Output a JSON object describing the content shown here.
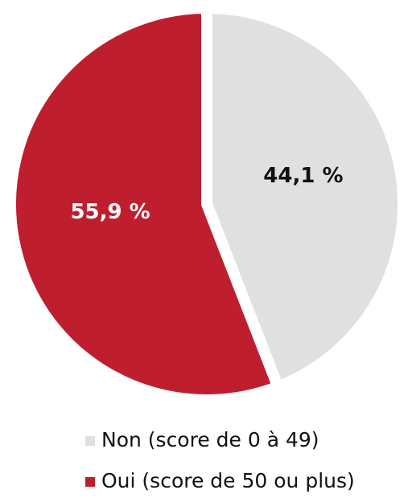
{
  "chart_data": {
    "type": "pie",
    "categories": [
      "Non (score de 0 à 49)",
      "Oui (score de 50 ou plus)"
    ],
    "values": [
      44.1,
      55.9
    ],
    "value_labels": [
      "44,1 %",
      "55,9 %"
    ],
    "colors": [
      "#e0e0e0",
      "#be1e2d"
    ],
    "label_colors": [
      "#111111",
      "#ffffff"
    ]
  }
}
